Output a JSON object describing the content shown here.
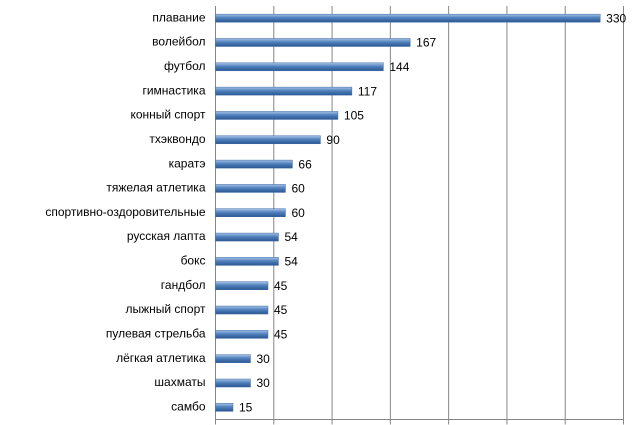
{
  "chart_data": {
    "type": "bar",
    "orientation": "horizontal",
    "categories": [
      "плавание",
      "волейбол",
      "футбол",
      "гимнастика",
      "конный спорт",
      "тхэквондо",
      "каратэ",
      "тяжелая атлетика",
      "спортивно-оздоровительные",
      "русская лапта",
      "бокс",
      "гандбол",
      "лыжный спорт",
      "пулевая стрельба",
      "лёгкая атлетика",
      "шахматы",
      "самбо"
    ],
    "values": [
      330,
      167,
      144,
      117,
      105,
      90,
      66,
      60,
      60,
      54,
      54,
      45,
      45,
      45,
      30,
      30,
      15
    ],
    "color": "#4f81bd",
    "xlim": [
      0,
      350
    ],
    "xticks": [
      0,
      50,
      100,
      150,
      200,
      250,
      300,
      350
    ],
    "grid": true
  }
}
